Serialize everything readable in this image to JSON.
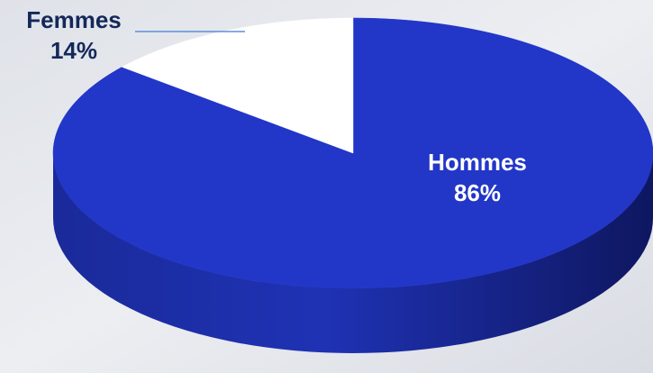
{
  "chart_data": {
    "type": "pie",
    "categories": [
      "Hommes",
      "Femmes"
    ],
    "values": [
      86,
      14
    ],
    "value_labels": [
      "86%",
      "14%"
    ],
    "colors": [
      "#2236c8",
      "#ffffff"
    ]
  }
}
